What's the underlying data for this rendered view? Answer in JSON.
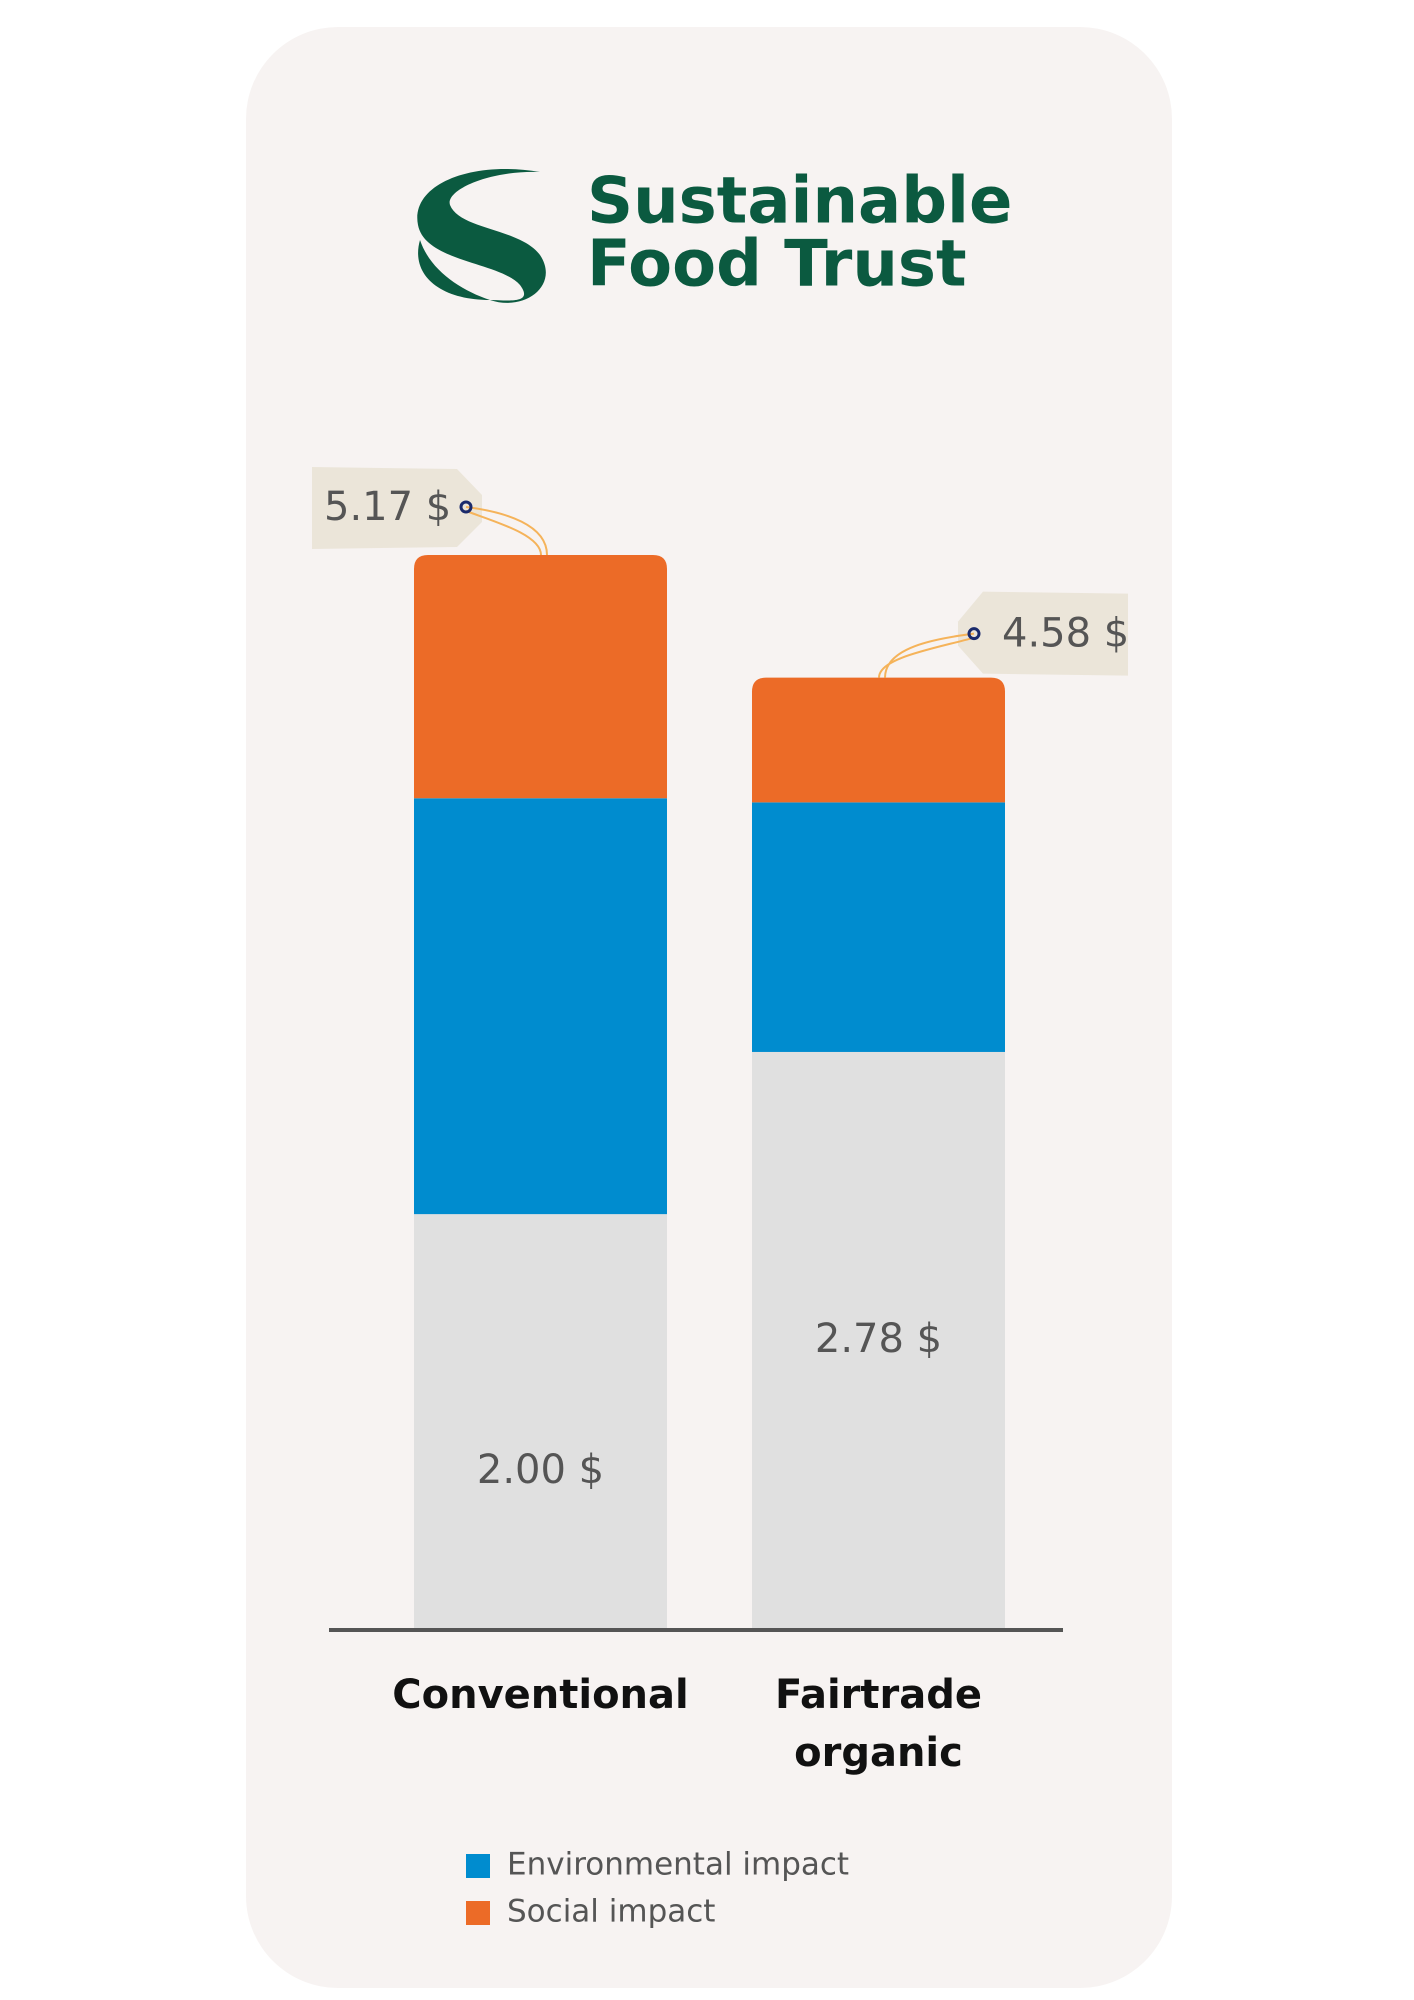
{
  "header": {
    "logo_lines": [
      "Sustainable",
      "Food Trust"
    ]
  },
  "chart_data": {
    "type": "stacked-bar",
    "categories": [
      "Conventional",
      "Fairtrade organic"
    ],
    "series": [
      {
        "color": "#e0e0e0",
        "values": [
          2.0,
          2.78
        ],
        "value_labels": [
          "2.00 $",
          "2.78 $"
        ]
      },
      {
        "name": "Environmental impact",
        "color": "#008ccf",
        "values": [
          2.0,
          1.2
        ]
      },
      {
        "name": "Social impact",
        "color": "#ec6b27",
        "values": [
          1.17,
          0.6
        ]
      }
    ],
    "totals": [
      5.17,
      4.58
    ],
    "total_labels": [
      "5.17 $",
      "4.58 $"
    ]
  }
}
